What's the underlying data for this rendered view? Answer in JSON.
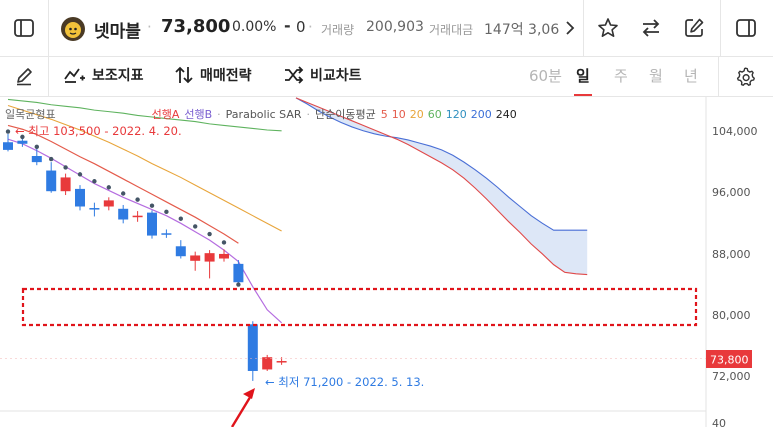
{
  "header": {
    "stock_name": "넷마블",
    "price": "73,800",
    "change_pct": "0.00%",
    "change_abs": "0",
    "volume_label": "거래량",
    "volume_value": "200,903",
    "amount_label": "거래대금",
    "amount_value": "147억 3,06"
  },
  "toolbar": {
    "indicators_label": "보조지표",
    "strategy_label": "매매전략",
    "compare_label": "비교차트",
    "periods": [
      "60분",
      "일",
      "주",
      "월",
      "년"
    ],
    "active_period": "일"
  },
  "legend": {
    "ichimoku": "일목균형표",
    "lead_a": "선행A",
    "lead_b": "선행B",
    "sar": "Parabolic SAR",
    "ma_label": "단순이동평균",
    "ma_periods": [
      "5",
      "10",
      "20",
      "60",
      "120",
      "200",
      "240"
    ],
    "ma_colors": [
      "#e45b4b",
      "#e45b4b",
      "#e8a53b",
      "#5fb35f",
      "#2f8fbf",
      "#3b6fd8",
      "#222222"
    ]
  },
  "annotations": {
    "high": "← 최고 103,500 - 2022. 4. 20.",
    "low": "← 최저 71,200 - 2022. 5. 13."
  },
  "axis": {
    "ticks": [
      "104,000",
      "96,000",
      "88,000",
      "80,000",
      "72,000",
      "40"
    ],
    "current_price_tag": "73,800"
  },
  "colors": {
    "up": "#e8393b",
    "down": "#2f7be2",
    "sar": "#445566",
    "cloud_fill": "#dde7f7",
    "cloud_a": "#4a6fd6",
    "cloud_b": "#e04a4a"
  },
  "chart_data": {
    "type": "candlestick",
    "y_range": [
      40,
      108000
    ],
    "candles": [
      {
        "o": 102400,
        "h": 103500,
        "l": 101200,
        "c": 101400
      },
      {
        "o": 102600,
        "h": 103000,
        "l": 101800,
        "c": 102200
      },
      {
        "o": 100600,
        "h": 101600,
        "l": 99400,
        "c": 99800
      },
      {
        "o": 98700,
        "h": 99800,
        "l": 95800,
        "c": 96000
      },
      {
        "o": 96000,
        "h": 98300,
        "l": 95500,
        "c": 97800
      },
      {
        "o": 96300,
        "h": 96800,
        "l": 93500,
        "c": 94000
      },
      {
        "o": 93800,
        "h": 94500,
        "l": 92700,
        "c": 93600
      },
      {
        "o": 94000,
        "h": 95200,
        "l": 93500,
        "c": 94800
      },
      {
        "o": 93700,
        "h": 94200,
        "l": 91800,
        "c": 92300
      },
      {
        "o": 92600,
        "h": 93400,
        "l": 92000,
        "c": 92800
      },
      {
        "o": 93200,
        "h": 93500,
        "l": 89800,
        "c": 90200
      },
      {
        "o": 90500,
        "h": 91000,
        "l": 89900,
        "c": 90400
      },
      {
        "o": 88800,
        "h": 89600,
        "l": 87200,
        "c": 87500
      },
      {
        "o": 86900,
        "h": 88100,
        "l": 85600,
        "c": 87600
      },
      {
        "o": 86800,
        "h": 88300,
        "l": 84600,
        "c": 87900
      },
      {
        "o": 87200,
        "h": 88400,
        "l": 86800,
        "c": 87800
      },
      {
        "o": 86500,
        "h": 87000,
        "l": 83800,
        "c": 84100
      },
      {
        "o": 78600,
        "h": 79000,
        "l": 71200,
        "c": 72500
      },
      {
        "o": 72700,
        "h": 74600,
        "l": 72500,
        "c": 74300
      },
      {
        "o": 73800,
        "h": 74300,
        "l": 73300,
        "c": 73800
      }
    ],
    "sar": [
      103800,
      103100,
      101800,
      100200,
      99100,
      98200,
      97300,
      96500,
      95700,
      94900,
      94100,
      93300,
      92400,
      91400,
      90400,
      89300,
      83800
    ],
    "ma5": [
      102800,
      102200,
      101300,
      100300,
      99200,
      98100,
      97000,
      96100,
      95200,
      94400,
      93600,
      92800,
      91800,
      90700,
      89600,
      88300,
      86800,
      83500,
      80500,
      78800
    ],
    "ma10": [
      104600,
      104100,
      103400,
      102500,
      101500,
      100500,
      99600,
      98600,
      97600,
      96600,
      95600,
      94600,
      93600,
      92600,
      91500,
      90400,
      89200
    ],
    "ma20": [
      107200,
      106600,
      106000,
      105400,
      104700,
      104000,
      103200,
      102400,
      101500,
      100600,
      99600,
      98700,
      97800,
      96800,
      95800,
      94800,
      93800,
      92800,
      91800,
      90800
    ],
    "ma60": [
      108000,
      107800,
      107600,
      107300,
      107100,
      106900,
      106600,
      106400,
      106200,
      105900,
      105700,
      105500,
      105300,
      105100,
      104800,
      104600,
      104400,
      104200,
      104000,
      103900
    ],
    "cloud_x_start": 20,
    "cloud_a": [
      108200,
      107400,
      106500,
      105700,
      105000,
      104400,
      103900,
      103500,
      103200,
      103000,
      102700,
      102300,
      101900,
      101400,
      100700,
      99800,
      98800,
      97700,
      96500,
      95200,
      94000,
      92800,
      91800,
      90900,
      90900,
      90900,
      90900
    ],
    "cloud_b": [
      108200,
      107600,
      107000,
      106400,
      105800,
      105200,
      104600,
      104000,
      103400,
      102800,
      102100,
      101300,
      100500,
      99700,
      98800,
      97700,
      96400,
      95000,
      93500,
      92000,
      90600,
      89100,
      87800,
      86400,
      85400,
      85200,
      85100
    ],
    "cloud_slot_width": 11.2
  }
}
